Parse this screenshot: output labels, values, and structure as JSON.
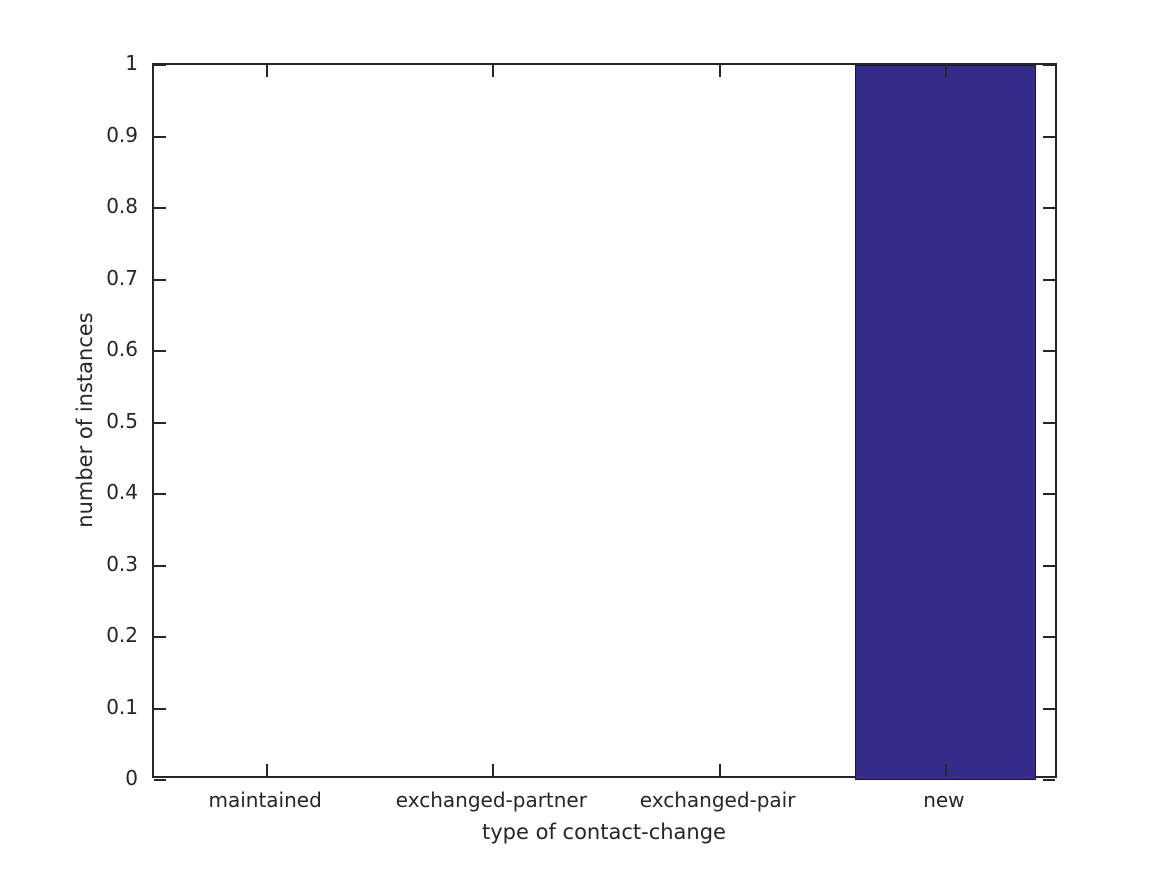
{
  "figure": {
    "background": "#ffffff"
  },
  "chart_data": {
    "type": "bar",
    "title": "",
    "xlabel": "type of contact-change",
    "ylabel": "number of instances",
    "categories": [
      "maintained",
      "exchanged-partner",
      "exchanged-pair",
      "new"
    ],
    "values": [
      0,
      0,
      0,
      1
    ],
    "ylim": [
      0,
      1
    ],
    "yticks": [
      0,
      0.1,
      0.2,
      0.3,
      0.4,
      0.5,
      0.6,
      0.7,
      0.8,
      0.9,
      1
    ],
    "ytick_labels": [
      "0",
      "0.1",
      "0.2",
      "0.3",
      "0.4",
      "0.5",
      "0.6",
      "0.7",
      "0.8",
      "0.9",
      "1"
    ],
    "bar_width_fraction": 0.8,
    "bar_color": "#352C8A",
    "bar_edge_color": "#1a1a1a",
    "axis_color": "#262626",
    "text_color": "#262626",
    "grid": false,
    "legend": null,
    "tick_direction": "in",
    "box": true
  }
}
